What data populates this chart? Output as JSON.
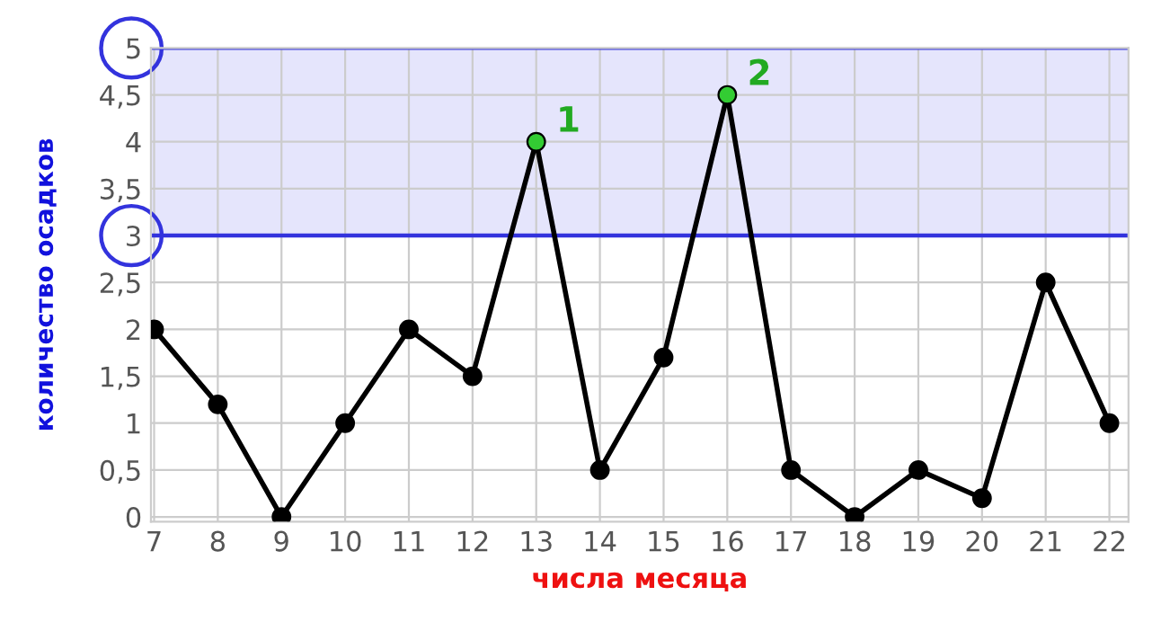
{
  "chart_data": {
    "type": "line",
    "xlabel": "числа месяца",
    "ylabel": "количество осадков",
    "x": [
      7,
      8,
      9,
      10,
      11,
      12,
      13,
      14,
      15,
      16,
      17,
      18,
      19,
      20,
      21,
      22
    ],
    "series": [
      {
        "color": "#000000",
        "values": [
          2,
          1.2,
          0,
          1,
          2,
          1.5,
          4,
          0.5,
          1.7,
          4.5,
          0.5,
          0,
          0.5,
          0.2,
          2.5,
          1
        ],
        "colors": [
          "#000000",
          "#000000",
          "#000000",
          "#000000",
          "#000000",
          "#000000",
          "#33cc33",
          "#000000",
          "#000000",
          "#33cc33",
          "#000000",
          "#000000",
          "#000000",
          "#000000",
          "#000000",
          "#000000"
        ]
      }
    ],
    "marker": "circle",
    "line_style": "solid",
    "grid": true,
    "xlim": [
      6.95,
      22.3
    ],
    "ylim": [
      -0.05,
      5
    ],
    "xticks": [
      7,
      8,
      9,
      10,
      11,
      12,
      13,
      14,
      15,
      16,
      17,
      18,
      19,
      20,
      21,
      22
    ],
    "yticks": [
      0,
      {
        "value": 0.5,
        "label": "0,5"
      },
      1,
      {
        "value": 1.5,
        "label": "1,5"
      },
      2,
      {
        "value": 2.5,
        "label": "2,5"
      },
      3,
      {
        "value": 3.5,
        "label": "3,5"
      },
      4,
      {
        "value": 4.5,
        "label": "4,5"
      },
      5
    ],
    "bands": [
      {
        "axis": "y",
        "from": 3,
        "to": 5,
        "color": "#e5e5fc"
      }
    ],
    "ref_lines": [
      {
        "axis": "y",
        "value": 3,
        "color": "#3333dd"
      },
      {
        "axis": "y",
        "value": 5,
        "color": "#3333dd"
      }
    ],
    "annotations": [
      {
        "text": "1",
        "x": 13,
        "y": 4
      },
      {
        "text": "2",
        "x": 16,
        "y": 4.5
      }
    ]
  }
}
